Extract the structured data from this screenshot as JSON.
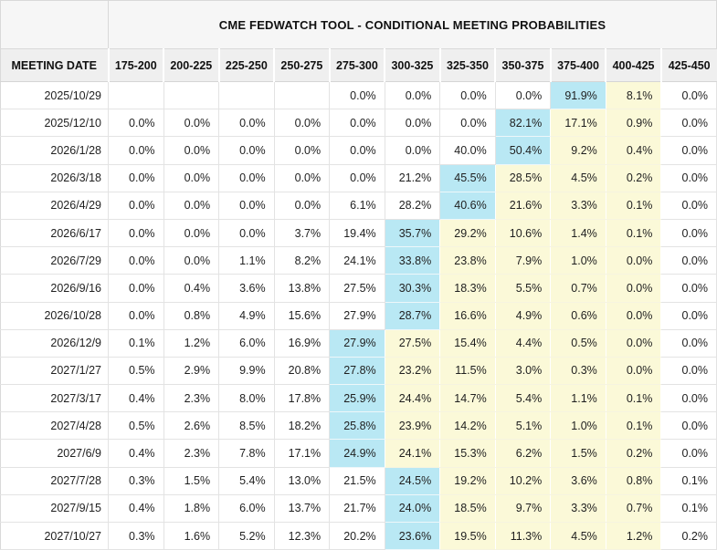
{
  "header": {
    "title": "CME FEDWATCH TOOL - CONDITIONAL MEETING PROBABILITIES",
    "date_column_label": "MEETING DATE"
  },
  "columns": [
    "175-200",
    "200-225",
    "225-250",
    "250-275",
    "275-300",
    "300-325",
    "325-350",
    "350-375",
    "375-400",
    "400-425",
    "425-450"
  ],
  "rows": [
    {
      "date": "2025/10/29",
      "values": [
        "",
        "",
        "",
        "",
        "0.0%",
        "0.0%",
        "0.0%",
        "0.0%",
        "91.9%",
        "8.1%",
        "0.0%"
      ],
      "hl": [
        "",
        "",
        "",
        "",
        "",
        "",
        "",
        "",
        "b",
        "y",
        ""
      ]
    },
    {
      "date": "2025/12/10",
      "values": [
        "0.0%",
        "0.0%",
        "0.0%",
        "0.0%",
        "0.0%",
        "0.0%",
        "0.0%",
        "82.1%",
        "17.1%",
        "0.9%",
        "0.0%"
      ],
      "hl": [
        "",
        "",
        "",
        "",
        "",
        "",
        "",
        "b",
        "y",
        "y",
        ""
      ]
    },
    {
      "date": "2026/1/28",
      "values": [
        "0.0%",
        "0.0%",
        "0.0%",
        "0.0%",
        "0.0%",
        "0.0%",
        "40.0%",
        "50.4%",
        "9.2%",
        "0.4%",
        "0.0%"
      ],
      "hl": [
        "",
        "",
        "",
        "",
        "",
        "",
        "",
        "b",
        "y",
        "y",
        ""
      ]
    },
    {
      "date": "2026/3/18",
      "values": [
        "0.0%",
        "0.0%",
        "0.0%",
        "0.0%",
        "0.0%",
        "21.2%",
        "45.5%",
        "28.5%",
        "4.5%",
        "0.2%",
        "0.0%"
      ],
      "hl": [
        "",
        "",
        "",
        "",
        "",
        "",
        "b",
        "y",
        "y",
        "y",
        ""
      ]
    },
    {
      "date": "2026/4/29",
      "values": [
        "0.0%",
        "0.0%",
        "0.0%",
        "0.0%",
        "6.1%",
        "28.2%",
        "40.6%",
        "21.6%",
        "3.3%",
        "0.1%",
        "0.0%"
      ],
      "hl": [
        "",
        "",
        "",
        "",
        "",
        "",
        "b",
        "y",
        "y",
        "y",
        ""
      ]
    },
    {
      "date": "2026/6/17",
      "values": [
        "0.0%",
        "0.0%",
        "0.0%",
        "3.7%",
        "19.4%",
        "35.7%",
        "29.2%",
        "10.6%",
        "1.4%",
        "0.1%",
        "0.0%"
      ],
      "hl": [
        "",
        "",
        "",
        "",
        "",
        "b",
        "y",
        "y",
        "y",
        "y",
        ""
      ]
    },
    {
      "date": "2026/7/29",
      "values": [
        "0.0%",
        "0.0%",
        "1.1%",
        "8.2%",
        "24.1%",
        "33.8%",
        "23.8%",
        "7.9%",
        "1.0%",
        "0.0%",
        "0.0%"
      ],
      "hl": [
        "",
        "",
        "",
        "",
        "",
        "b",
        "y",
        "y",
        "y",
        "y",
        ""
      ]
    },
    {
      "date": "2026/9/16",
      "values": [
        "0.0%",
        "0.4%",
        "3.6%",
        "13.8%",
        "27.5%",
        "30.3%",
        "18.3%",
        "5.5%",
        "0.7%",
        "0.0%",
        "0.0%"
      ],
      "hl": [
        "",
        "",
        "",
        "",
        "",
        "b",
        "y",
        "y",
        "y",
        "y",
        ""
      ]
    },
    {
      "date": "2026/10/28",
      "values": [
        "0.0%",
        "0.8%",
        "4.9%",
        "15.6%",
        "27.9%",
        "28.7%",
        "16.6%",
        "4.9%",
        "0.6%",
        "0.0%",
        "0.0%"
      ],
      "hl": [
        "",
        "",
        "",
        "",
        "",
        "b",
        "y",
        "y",
        "y",
        "y",
        ""
      ]
    },
    {
      "date": "2026/12/9",
      "values": [
        "0.1%",
        "1.2%",
        "6.0%",
        "16.9%",
        "27.9%",
        "27.5%",
        "15.4%",
        "4.4%",
        "0.5%",
        "0.0%",
        "0.0%"
      ],
      "hl": [
        "",
        "",
        "",
        "",
        "b",
        "y",
        "y",
        "y",
        "y",
        "y",
        ""
      ]
    },
    {
      "date": "2027/1/27",
      "values": [
        "0.5%",
        "2.9%",
        "9.9%",
        "20.8%",
        "27.8%",
        "23.2%",
        "11.5%",
        "3.0%",
        "0.3%",
        "0.0%",
        "0.0%"
      ],
      "hl": [
        "",
        "",
        "",
        "",
        "b",
        "y",
        "y",
        "y",
        "y",
        "y",
        ""
      ]
    },
    {
      "date": "2027/3/17",
      "values": [
        "0.4%",
        "2.3%",
        "8.0%",
        "17.8%",
        "25.9%",
        "24.4%",
        "14.7%",
        "5.4%",
        "1.1%",
        "0.1%",
        "0.0%"
      ],
      "hl": [
        "",
        "",
        "",
        "",
        "b",
        "y",
        "y",
        "y",
        "y",
        "y",
        ""
      ]
    },
    {
      "date": "2027/4/28",
      "values": [
        "0.5%",
        "2.6%",
        "8.5%",
        "18.2%",
        "25.8%",
        "23.9%",
        "14.2%",
        "5.1%",
        "1.0%",
        "0.1%",
        "0.0%"
      ],
      "hl": [
        "",
        "",
        "",
        "",
        "b",
        "y",
        "y",
        "y",
        "y",
        "y",
        ""
      ]
    },
    {
      "date": "2027/6/9",
      "values": [
        "0.4%",
        "2.3%",
        "7.8%",
        "17.1%",
        "24.9%",
        "24.1%",
        "15.3%",
        "6.2%",
        "1.5%",
        "0.2%",
        "0.0%"
      ],
      "hl": [
        "",
        "",
        "",
        "",
        "b",
        "y",
        "y",
        "y",
        "y",
        "y",
        ""
      ]
    },
    {
      "date": "2027/7/28",
      "values": [
        "0.3%",
        "1.5%",
        "5.4%",
        "13.0%",
        "21.5%",
        "24.5%",
        "19.2%",
        "10.2%",
        "3.6%",
        "0.8%",
        "0.1%"
      ],
      "hl": [
        "",
        "",
        "",
        "",
        "",
        "b",
        "y",
        "y",
        "y",
        "y",
        ""
      ]
    },
    {
      "date": "2027/9/15",
      "values": [
        "0.4%",
        "1.8%",
        "6.0%",
        "13.7%",
        "21.7%",
        "24.0%",
        "18.5%",
        "9.7%",
        "3.3%",
        "0.7%",
        "0.1%"
      ],
      "hl": [
        "",
        "",
        "",
        "",
        "",
        "b",
        "y",
        "y",
        "y",
        "y",
        ""
      ]
    },
    {
      "date": "2027/10/27",
      "values": [
        "0.3%",
        "1.6%",
        "5.2%",
        "12.3%",
        "20.2%",
        "23.6%",
        "19.5%",
        "11.3%",
        "4.5%",
        "1.2%",
        "0.2%"
      ],
      "hl": [
        "",
        "",
        "",
        "",
        "",
        "b",
        "y",
        "y",
        "y",
        "y",
        ""
      ]
    }
  ],
  "colors": {
    "highlight_blue": "#b9e8f4",
    "highlight_yellow": "#fbf9d8",
    "title_bg": "#f6f6f6",
    "header_bg": "#efefef",
    "grid_border": "#e3e3e3"
  }
}
